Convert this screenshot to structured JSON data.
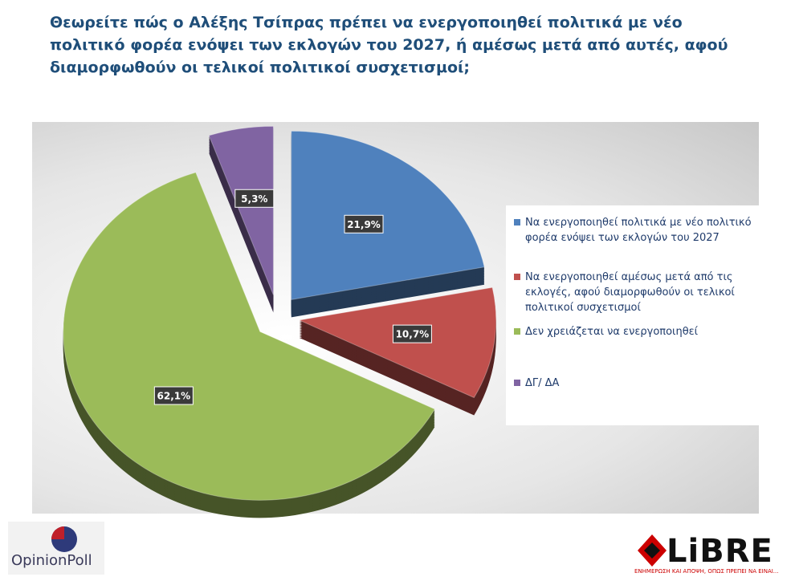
{
  "chart_data": {
    "type": "pie",
    "title": "Θεωρείτε πώς ο Αλέξης Τσίπρας πρέπει να ενεργοποιηθεί πολιτικά με νέο πολιτικό φορέα ενόψει των εκλογών του 2027, ή αμέσως μετά από αυτές, αφού διαμορφωθούν οι τελικοί πολιτικοί συσχετισμοί;",
    "series": [
      {
        "name": "Να ενεργοποιηθεί πολιτικά με νέο πολιτικό φορέα ενόψει των εκλογών του 2027",
        "color": "#4f81bd",
        "values": [
          21.9
        ],
        "value_labels": [
          "21,9%"
        ]
      },
      {
        "name": "Να ενεργοποιηθεί αμέσως μετά από τις εκλογές, αφού διαμορφωθούν οι τελικοί πολιτικοί συσχετισμοί",
        "color": "#c0504d",
        "values": [
          10.7
        ],
        "value_labels": [
          "10,7%"
        ]
      },
      {
        "name": "Δεν χρειάζεται να ενεργοποιηθεί",
        "color": "#9bbb59",
        "values": [
          62.1
        ],
        "value_labels": [
          "62,1%"
        ]
      },
      {
        "name": "ΔΓ/ ΔΑ",
        "color": "#8064a2",
        "values": [
          5.3
        ],
        "value_labels": [
          "5,3%"
        ]
      }
    ],
    "legend": "right"
  },
  "logos": {
    "left": "OpinionPoll",
    "right": "LiBRE",
    "tagline": "ΕΝΗΜΕΡΩΣΗ ΚΑΙ ΑΠΟΨΗ, ΟΠΩΣ ΠΡΕΠΕΙ ΝΑ ΕΙΝΑΙ..."
  }
}
